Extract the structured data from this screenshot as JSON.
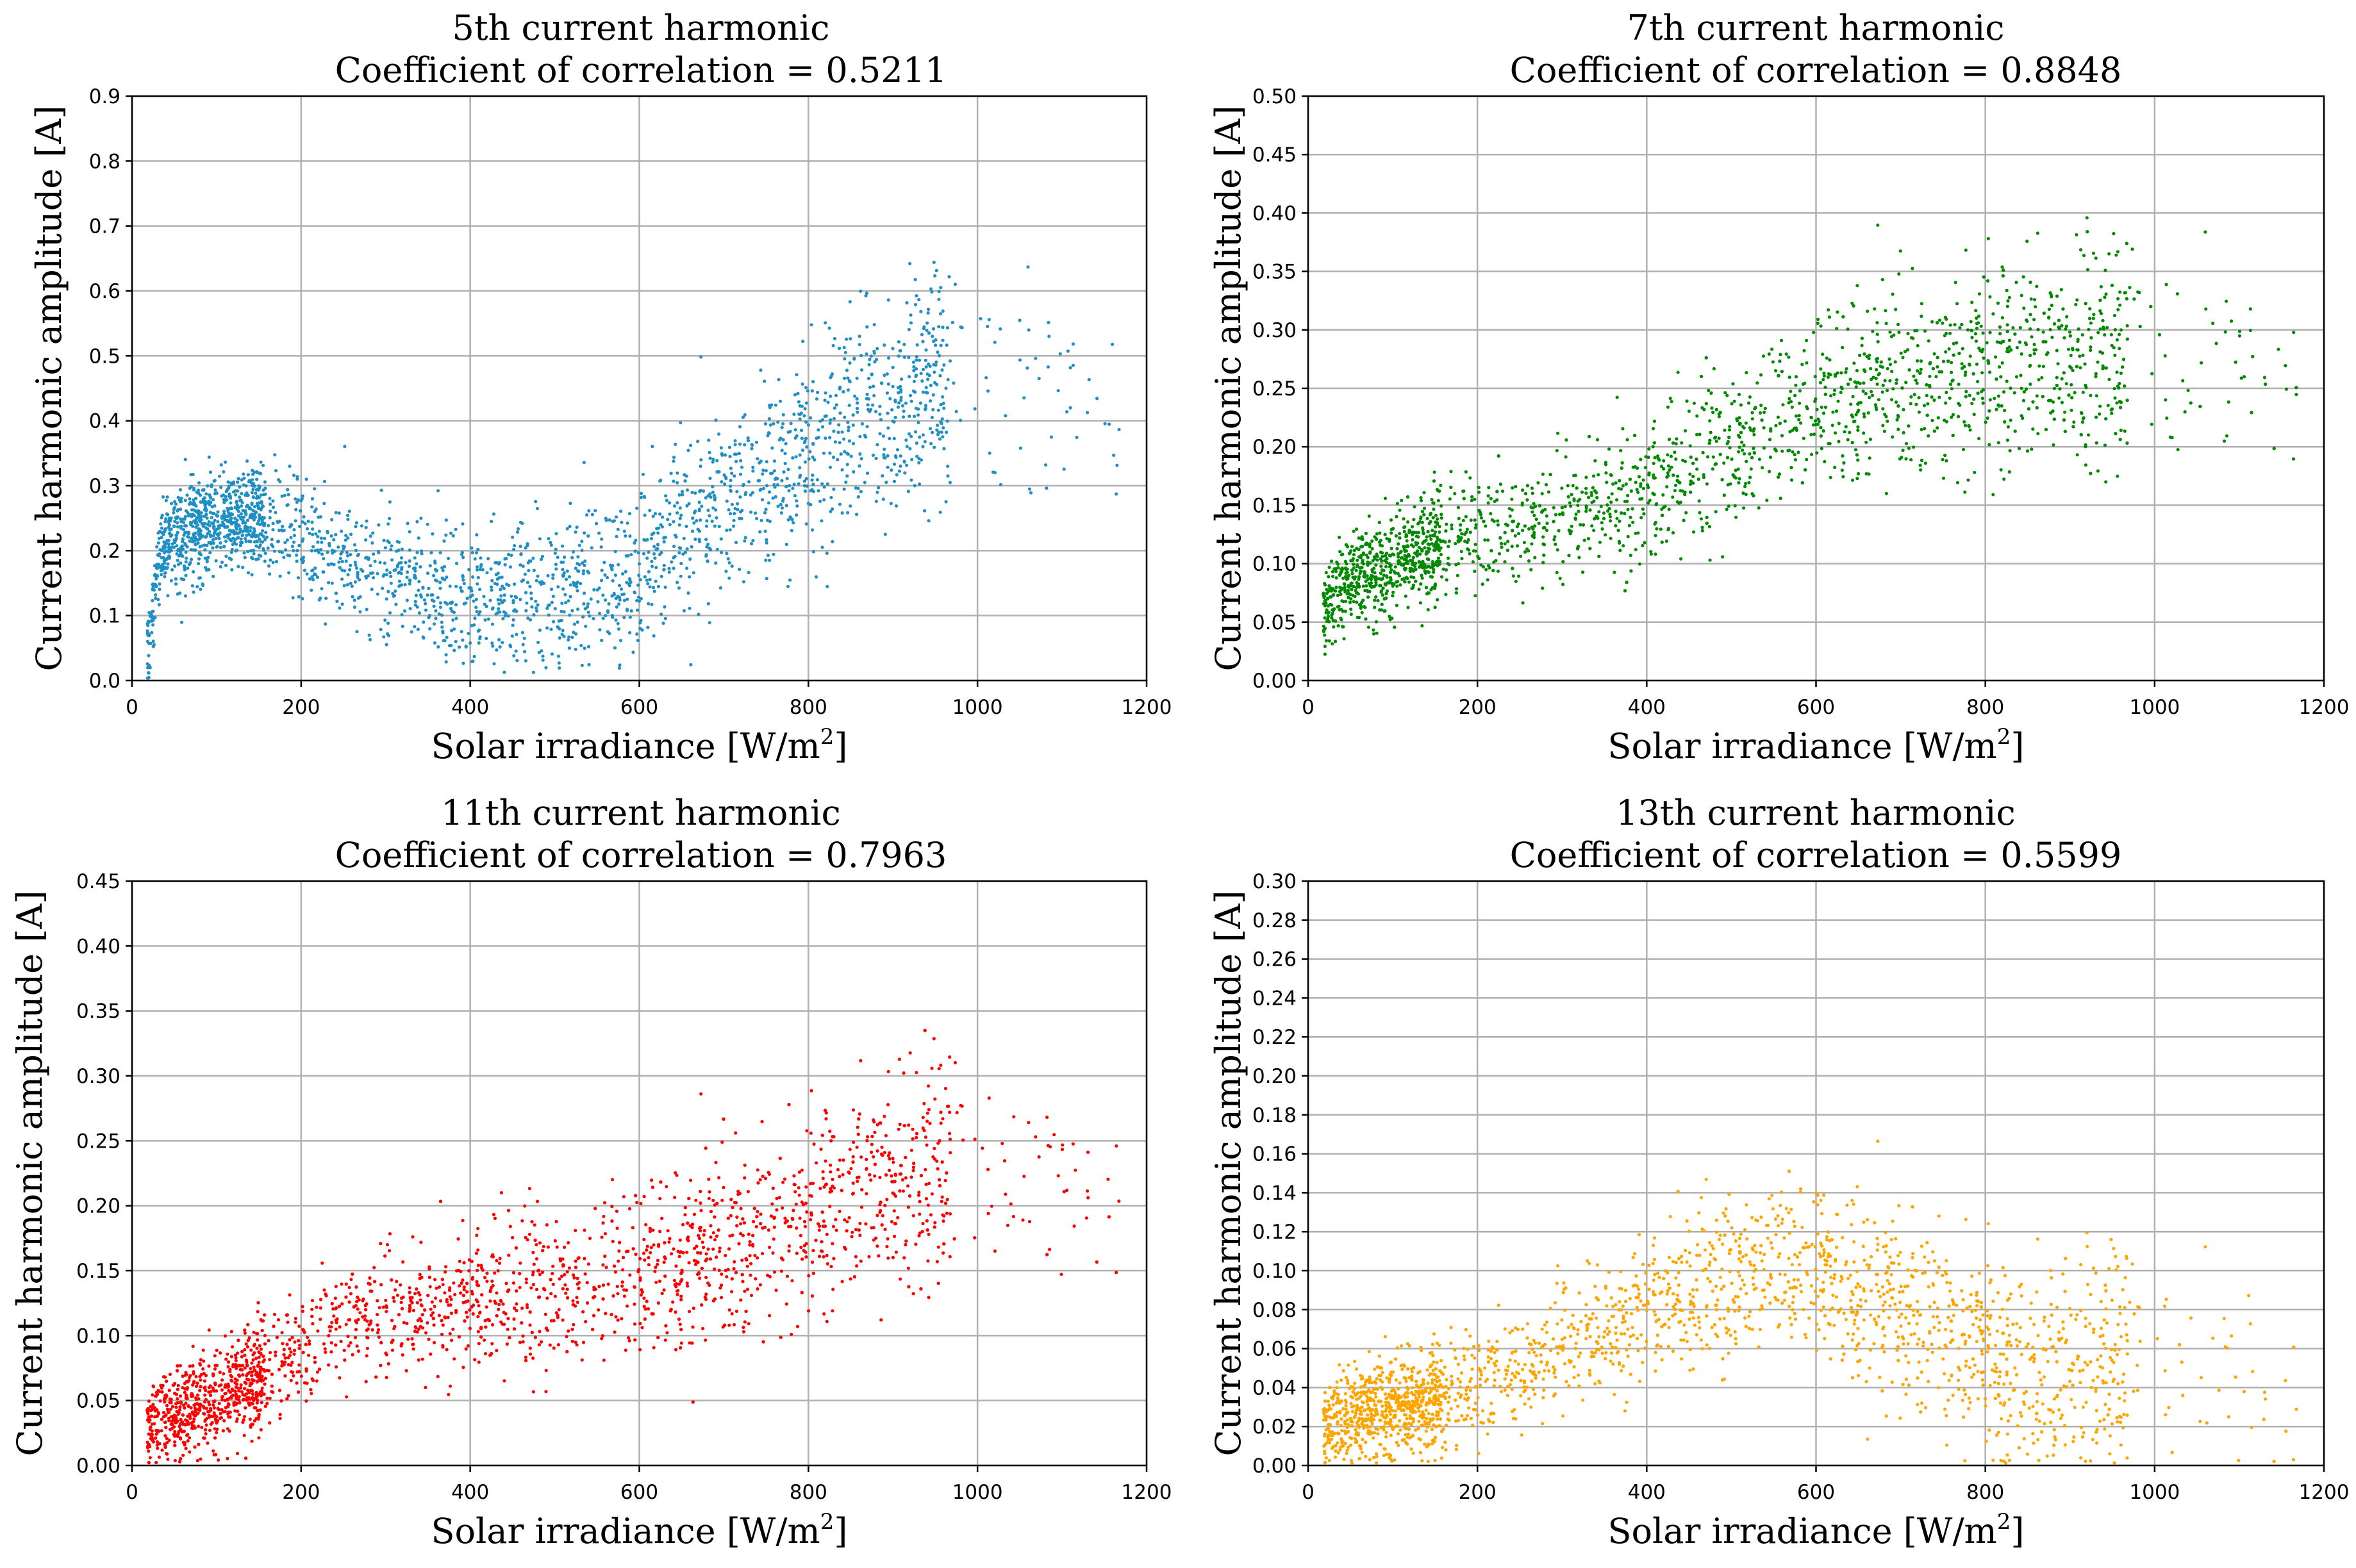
{
  "chart_data": [
    {
      "type": "scatter",
      "title": "5th current harmonic",
      "subtitle": "Coefficient of correlation = 0.5211",
      "xlabel": "Solar irradiance [W/m",
      "xlabel_sup": "2",
      "xlabel_end": "]",
      "ylabel": "Current harmonic amplitude [A]",
      "xlim": [
        0,
        1200
      ],
      "ylim": [
        0,
        0.9
      ],
      "xticks": [
        "0",
        "200",
        "400",
        "600",
        "800",
        "1000",
        "1200"
      ],
      "yticks": [
        "0.0",
        "0.1",
        "0.2",
        "0.3",
        "0.4",
        "0.5",
        "0.6",
        "0.7",
        "0.8",
        "0.9"
      ],
      "grid": true,
      "color": "#1f8fc4",
      "series": [
        {
          "name": "5th harmonic",
          "x": [
            20,
            30,
            40,
            50,
            60,
            80,
            100,
            120,
            140,
            160,
            180,
            200,
            220,
            250,
            280,
            300,
            330,
            360,
            400,
            430,
            460,
            500,
            530,
            560,
            600,
            620,
            650,
            680,
            700,
            730,
            760,
            800,
            830,
            860,
            900,
            930,
            960
          ],
          "y": [
            0.05,
            0.18,
            0.21,
            0.22,
            0.22,
            0.23,
            0.24,
            0.25,
            0.26,
            0.25,
            0.24,
            0.23,
            0.21,
            0.19,
            0.17,
            0.16,
            0.15,
            0.14,
            0.13,
            0.13,
            0.13,
            0.13,
            0.14,
            0.15,
            0.16,
            0.2,
            0.24,
            0.26,
            0.28,
            0.3,
            0.32,
            0.35,
            0.38,
            0.4,
            0.42,
            0.44,
            0.45
          ]
        }
      ]
    },
    {
      "type": "scatter",
      "title": "7th current harmonic",
      "subtitle": "Coefficient of correlation = 0.8848",
      "xlabel": "Solar irradiance [W/m",
      "xlabel_sup": "2",
      "xlabel_end": "]",
      "ylabel": "Current harmonic amplitude [A]",
      "xlim": [
        0,
        1200
      ],
      "ylim": [
        0,
        0.5
      ],
      "xticks": [
        "0",
        "200",
        "400",
        "600",
        "800",
        "1000",
        "1200"
      ],
      "yticks": [
        "0.00",
        "0.05",
        "0.10",
        "0.15",
        "0.20",
        "0.25",
        "0.30",
        "0.35",
        "0.40",
        "0.45",
        "0.50"
      ],
      "grid": true,
      "color": "#008a00",
      "series": [
        {
          "name": "7th harmonic",
          "x": [
            20,
            40,
            60,
            80,
            100,
            130,
            160,
            200,
            250,
            300,
            350,
            400,
            450,
            500,
            550,
            600,
            650,
            700,
            750,
            800,
            850,
            900,
            950,
            980
          ],
          "y": [
            0.06,
            0.08,
            0.09,
            0.09,
            0.1,
            0.11,
            0.12,
            0.13,
            0.13,
            0.14,
            0.15,
            0.16,
            0.18,
            0.2,
            0.22,
            0.24,
            0.25,
            0.26,
            0.26,
            0.27,
            0.27,
            0.28,
            0.28,
            0.28
          ]
        }
      ]
    },
    {
      "type": "scatter",
      "title": "11th current harmonic",
      "subtitle": "Coefficient of correlation = 0.7963",
      "xlabel": "Solar irradiance [W/m",
      "xlabel_sup": "2",
      "xlabel_end": "]",
      "ylabel": "Current harmonic amplitude [A]",
      "xlim": [
        0,
        1200
      ],
      "ylim": [
        0,
        0.45
      ],
      "xticks": [
        "0",
        "200",
        "400",
        "600",
        "800",
        "1000",
        "1200"
      ],
      "yticks": [
        "0.00",
        "0.05",
        "0.10",
        "0.15",
        "0.20",
        "0.25",
        "0.30",
        "0.35",
        "0.40",
        "0.45"
      ],
      "grid": true,
      "color": "#ff0000",
      "series": [
        {
          "name": "11th harmonic",
          "x": [
            20,
            40,
            60,
            80,
            100,
            150,
            200,
            250,
            300,
            350,
            400,
            450,
            500,
            550,
            600,
            650,
            700,
            750,
            800,
            850,
            900,
            950
          ],
          "y": [
            0.03,
            0.04,
            0.04,
            0.05,
            0.05,
            0.07,
            0.09,
            0.11,
            0.12,
            0.12,
            0.13,
            0.13,
            0.14,
            0.14,
            0.15,
            0.16,
            0.17,
            0.18,
            0.19,
            0.21,
            0.22,
            0.23
          ]
        }
      ]
    },
    {
      "type": "scatter",
      "title": "13th current harmonic",
      "subtitle": "Coefficient of correlation = 0.5599",
      "xlabel": "Solar irradiance [W/m",
      "xlabel_sup": "2",
      "xlabel_end": "]",
      "ylabel": "Current harmonic amplitude [A]",
      "xlim": [
        0,
        1200
      ],
      "ylim": [
        0,
        0.3
      ],
      "xticks": [
        "0",
        "200",
        "400",
        "600",
        "800",
        "1000",
        "1200"
      ],
      "yticks": [
        "0.00",
        "0.02",
        "0.04",
        "0.06",
        "0.08",
        "0.10",
        "0.12",
        "0.14",
        "0.16",
        "0.18",
        "0.20",
        "0.22",
        "0.24",
        "0.26",
        "0.28",
        "0.30"
      ],
      "grid": true,
      "color": "#ffa500",
      "series": [
        {
          "name": "13th harmonic",
          "x": [
            20,
            40,
            60,
            80,
            100,
            150,
            200,
            250,
            300,
            350,
            400,
            450,
            500,
            550,
            600,
            650,
            700,
            750,
            800,
            850,
            900,
            950
          ],
          "y": [
            0.02,
            0.025,
            0.025,
            0.03,
            0.03,
            0.035,
            0.04,
            0.05,
            0.06,
            0.07,
            0.08,
            0.09,
            0.1,
            0.1,
            0.1,
            0.09,
            0.08,
            0.07,
            0.06,
            0.05,
            0.05,
            0.05
          ]
        }
      ]
    }
  ]
}
